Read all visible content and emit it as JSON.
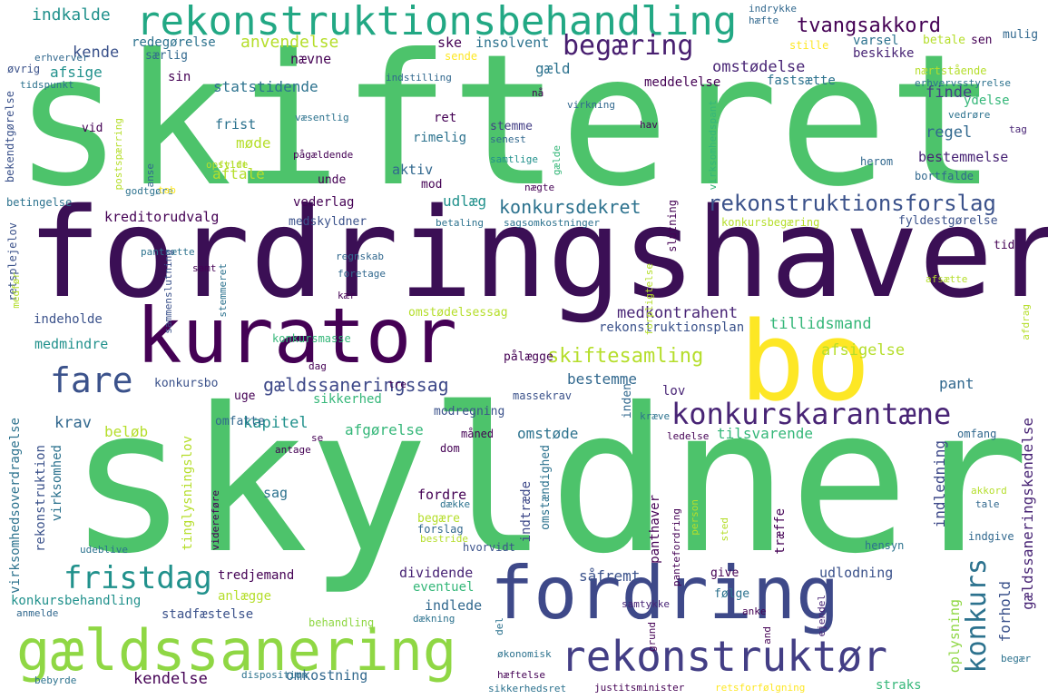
{
  "words": [
    {
      "t": "skifteret",
      "c": "#4dc36b"
    },
    {
      "t": "fordringshaver",
      "c": "#3b0f55"
    },
    {
      "t": "skyldner",
      "c": "#4dc36b"
    },
    {
      "t": "kurator",
      "c": "#440154"
    },
    {
      "t": "bo",
      "c": "#fde725"
    },
    {
      "t": "fordring",
      "c": "#3e4989"
    },
    {
      "t": "gældssanering",
      "c": "#8fd744"
    },
    {
      "t": "rekonstruktionsbehandling",
      "c": "#22a884"
    },
    {
      "t": "rekonstruktør",
      "c": "#433e85"
    },
    {
      "t": "fare",
      "c": "#3b528b"
    },
    {
      "t": "begæring",
      "c": "#481f70"
    },
    {
      "t": "konkurskarantæne",
      "c": "#482475"
    },
    {
      "t": "fristdag",
      "c": "#21918c"
    },
    {
      "t": "konkurs",
      "c": "#2c728e"
    },
    {
      "t": "rekonstruktionsforslag",
      "c": "#3b528b"
    },
    {
      "t": "tvangsakkord",
      "c": "#440154"
    },
    {
      "t": "skiftesamling",
      "c": "#b5de2b"
    },
    {
      "t": "gældssaneringssag",
      "c": "#3e4989"
    },
    {
      "t": "konkursdekret",
      "c": "#2c728e"
    },
    {
      "t": "medkontrahent",
      "c": "#482475"
    },
    {
      "t": "indkalde",
      "c": "#21918c"
    },
    {
      "t": "anvendelse",
      "c": "#b5de2b"
    },
    {
      "t": "omstødelse",
      "c": "#482475"
    },
    {
      "t": "kende",
      "c": "#3b528b"
    },
    {
      "t": "nævne",
      "c": "#440154"
    },
    {
      "t": "afsige",
      "c": "#21918c"
    },
    {
      "t": "gæld",
      "c": "#2c728e"
    },
    {
      "t": "finde",
      "c": "#433e85"
    },
    {
      "t": "regel",
      "c": "#31688e"
    },
    {
      "t": "ydelse",
      "c": "#35b779"
    },
    {
      "t": "bestemmelse",
      "c": "#482475"
    },
    {
      "t": "statstidende",
      "c": "#2c728e"
    },
    {
      "t": "meddelelse",
      "c": "#440154"
    },
    {
      "t": "fastsætte",
      "c": "#2c728e"
    },
    {
      "t": "redegørelse",
      "c": "#2c728e"
    },
    {
      "t": "særlig",
      "c": "#31688e"
    },
    {
      "t": "sende",
      "c": "#fde725"
    },
    {
      "t": "ske",
      "c": "#440154"
    },
    {
      "t": "insolvent",
      "c": "#2c728e"
    },
    {
      "t": "frist",
      "c": "#2c728e"
    },
    {
      "t": "møde",
      "c": "#b5de2b"
    },
    {
      "t": "ret",
      "c": "#440154"
    },
    {
      "t": "stemme",
      "c": "#433e85"
    },
    {
      "t": "rimelig",
      "c": "#2c728e"
    },
    {
      "t": "aktiv",
      "c": "#31688e"
    },
    {
      "t": "mod",
      "c": "#440154"
    },
    {
      "t": "aftale",
      "c": "#b5de2b"
    },
    {
      "t": "udlæg",
      "c": "#21918c"
    },
    {
      "t": "vederlag",
      "c": "#440154"
    },
    {
      "t": "kreditorudvalg",
      "c": "#440154"
    },
    {
      "t": "medskyldner",
      "c": "#3b528b"
    },
    {
      "t": "indeholde",
      "c": "#3b528b"
    },
    {
      "t": "medmindre",
      "c": "#21918c"
    },
    {
      "t": "tillidsmand",
      "c": "#35b779"
    },
    {
      "t": "rekonstruktionsplan",
      "c": "#3b528b"
    },
    {
      "t": "afsigelse",
      "c": "#b5de2b"
    },
    {
      "t": "bestemme",
      "c": "#31688e"
    },
    {
      "t": "pant",
      "c": "#31688e"
    },
    {
      "t": "lov",
      "c": "#482475"
    },
    {
      "t": "krav",
      "c": "#31688e"
    },
    {
      "t": "beløb",
      "c": "#b5de2b"
    },
    {
      "t": "kapitel",
      "c": "#21918c"
    },
    {
      "t": "afgørelse",
      "c": "#35b779"
    },
    {
      "t": "omstøde",
      "c": "#2c728e"
    },
    {
      "t": "tilsvarende",
      "c": "#35b779"
    },
    {
      "t": "sikkerhed",
      "c": "#35b779"
    },
    {
      "t": "uge",
      "c": "#440154"
    },
    {
      "t": "konkursbo",
      "c": "#3b528b"
    },
    {
      "t": "pålægge",
      "c": "#440154"
    },
    {
      "t": "inden",
      "c": "#31688e"
    },
    {
      "t": "indledning",
      "c": "#3e4989"
    },
    {
      "t": "forhold",
      "c": "#3b528b"
    },
    {
      "t": "gældssaneringskendelse",
      "c": "#482475"
    },
    {
      "t": "oplysning",
      "c": "#8fd744"
    },
    {
      "t": "udlodning",
      "c": "#3b528b"
    },
    {
      "t": "sag",
      "c": "#2c728e"
    },
    {
      "t": "fordre",
      "c": "#440154"
    },
    {
      "t": "dividende",
      "c": "#482475"
    },
    {
      "t": "eventuel",
      "c": "#35b779"
    },
    {
      "t": "indlede",
      "c": "#31688e"
    },
    {
      "t": "tredjemand",
      "c": "#440154"
    },
    {
      "t": "anlægge",
      "c": "#b5de2b"
    },
    {
      "t": "stadfæstelse",
      "c": "#3b528b"
    },
    {
      "t": "kendelse",
      "c": "#440154"
    },
    {
      "t": "omkostning",
      "c": "#31688e"
    },
    {
      "t": "konkursbehandling",
      "c": "#21918c"
    },
    {
      "t": "behandling",
      "c": "#8fd744"
    },
    {
      "t": "straks",
      "c": "#35b779"
    },
    {
      "t": "rekonstruktion",
      "c": "#3b528b"
    },
    {
      "t": "virksomhed",
      "c": "#2c728e"
    },
    {
      "t": "virksomhedsoverdragelse",
      "c": "#2c728e"
    },
    {
      "t": "tinglysningslov",
      "c": "#b5de2b"
    },
    {
      "t": "indtræde",
      "c": "#3e4989"
    },
    {
      "t": "omstændighed",
      "c": "#2c728e"
    },
    {
      "t": "panthaver",
      "c": "#440154"
    },
    {
      "t": "træffe",
      "c": "#440154"
    },
    {
      "t": "såfremt",
      "c": "#3b528b"
    },
    {
      "t": "følge",
      "c": "#2c728e"
    },
    {
      "t": "give",
      "c": "#440154"
    },
    {
      "t": "forslag",
      "c": "#31688e"
    },
    {
      "t": "begære",
      "c": "#b5de2b"
    },
    {
      "t": "hvorvidt",
      "c": "#3b528b"
    },
    {
      "t": "hensyn",
      "c": "#2c728e"
    },
    {
      "t": "indgive",
      "c": "#31688e"
    },
    {
      "t": "omfang",
      "c": "#31688e"
    },
    {
      "t": "omfatte",
      "c": "#31688e"
    },
    {
      "t": "dom",
      "c": "#440154"
    },
    {
      "t": "måned",
      "c": "#440154"
    },
    {
      "t": "modregning",
      "c": "#3b528b"
    },
    {
      "t": "massekrav",
      "c": "#3b528b"
    },
    {
      "t": "konkursmasse",
      "c": "#35b779"
    },
    {
      "t": "omstødelsessag",
      "c": "#b5de2b"
    },
    {
      "t": "konkursbegæring",
      "c": "#b5de2b"
    },
    {
      "t": "fyldestgørelse",
      "c": "#3b528b"
    },
    {
      "t": "tid",
      "c": "#440154"
    },
    {
      "t": "betaling",
      "c": "#2c728e"
    },
    {
      "t": "sagsomkostninger",
      "c": "#2c728e"
    },
    {
      "t": "unde",
      "c": "#440154"
    },
    {
      "t": "pågældende",
      "c": "#440154"
    },
    {
      "t": "herom",
      "c": "#31688e"
    },
    {
      "t": "bortfalde",
      "c": "#31688e"
    },
    {
      "t": "samtlige",
      "c": "#21918c"
    },
    {
      "t": "nægte",
      "c": "#440154"
    },
    {
      "t": "slutning",
      "c": "#440154"
    },
    {
      "t": "gælde",
      "c": "#35b779"
    },
    {
      "t": "senest",
      "c": "#31688e"
    },
    {
      "t": "væsentlig",
      "c": "#2c728e"
    },
    {
      "t": "vid",
      "c": "#440154"
    },
    {
      "t": "postspærring",
      "c": "#b5de2b"
    },
    {
      "t": "bekendtgørelse",
      "c": "#3b528b"
    },
    {
      "t": "tidspunkt",
      "c": "#2c728e"
    },
    {
      "t": "erhverver",
      "c": "#31688e"
    },
    {
      "t": "øvrig",
      "c": "#3b528b"
    },
    {
      "t": "sin",
      "c": "#440154"
    },
    {
      "t": "indstilling",
      "c": "#31688e"
    },
    {
      "t": "nå",
      "c": "#440154"
    },
    {
      "t": "virkning",
      "c": "#31688e"
    },
    {
      "t": "erhvervsstyrelse",
      "c": "#2c728e"
    },
    {
      "t": "vedrøre",
      "c": "#2c728e"
    },
    {
      "t": "tag",
      "c": "#482475"
    },
    {
      "t": "hav",
      "c": "#440154"
    },
    {
      "t": "stift",
      "c": "#b5de2b"
    },
    {
      "t": "opfylde",
      "c": "#b5de2b"
    },
    {
      "t": "godtgøre",
      "c": "#2c728e"
    },
    {
      "t": "tab",
      "c": "#fde725"
    },
    {
      "t": "betingelse",
      "c": "#2c728e"
    },
    {
      "t": "anse",
      "c": "#31688e"
    },
    {
      "t": "virksomhedspant",
      "c": "#35b779"
    },
    {
      "t": "indrykke",
      "c": "#31688e"
    },
    {
      "t": "hæfte",
      "c": "#31688e"
    },
    {
      "t": "varsel",
      "c": "#2c728e"
    },
    {
      "t": "betale",
      "c": "#b5de2b"
    },
    {
      "t": "sen",
      "c": "#440154"
    },
    {
      "t": "mulig",
      "c": "#31688e"
    },
    {
      "t": "nærtstående",
      "c": "#b5de2b"
    },
    {
      "t": "stille",
      "c": "#fde725"
    },
    {
      "t": "beskikke",
      "c": "#482475"
    },
    {
      "t": "retsplejelov",
      "c": "#3b528b"
    },
    {
      "t": "medfør",
      "c": "#b5de2b"
    },
    {
      "t": "pantsætte",
      "c": "#2c728e"
    },
    {
      "t": "samt",
      "c": "#440154"
    },
    {
      "t": "sammenslutning",
      "c": "#3b528b"
    },
    {
      "t": "stemmeret",
      "c": "#2c728e"
    },
    {
      "t": "regnskab",
      "c": "#31688e"
    },
    {
      "t": "foretage",
      "c": "#31688e"
    },
    {
      "t": "kær",
      "c": "#440154"
    },
    {
      "t": "forpligtelse",
      "c": "#b5de2b"
    },
    {
      "t": "afsætte",
      "c": "#b5de2b"
    },
    {
      "t": "afdrag",
      "c": "#b5de2b"
    },
    {
      "t": "dag",
      "c": "#440154"
    },
    {
      "t": "tre",
      "c": "#440154"
    },
    {
      "t": "kræve",
      "c": "#2c728e"
    },
    {
      "t": "ledelse",
      "c": "#440154"
    },
    {
      "t": "akkord",
      "c": "#b5de2b"
    },
    {
      "t": "tale",
      "c": "#31688e"
    },
    {
      "t": "antage",
      "c": "#440154"
    },
    {
      "t": "se",
      "c": "#440154"
    },
    {
      "t": "udeblive",
      "c": "#2c728e"
    },
    {
      "t": "videreføre",
      "c": "#440154"
    },
    {
      "t": "dække",
      "c": "#2c728e"
    },
    {
      "t": "bestride",
      "c": "#b5de2b"
    },
    {
      "t": "person",
      "c": "#b5de2b"
    },
    {
      "t": "sted",
      "c": "#b5de2b"
    },
    {
      "t": "pantefordring",
      "c": "#440154"
    },
    {
      "t": "samtykke",
      "c": "#482475"
    },
    {
      "t": "ejendel",
      "c": "#482475"
    },
    {
      "t": "anke",
      "c": "#440154"
    },
    {
      "t": "anmelde",
      "c": "#31688e"
    },
    {
      "t": "dækning",
      "c": "#2c728e"
    },
    {
      "t": "grund",
      "c": "#440154"
    },
    {
      "t": "and",
      "c": "#440154"
    },
    {
      "t": "del",
      "c": "#2c728e"
    },
    {
      "t": "økonomisk",
      "c": "#2c728e"
    },
    {
      "t": "disposition",
      "c": "#2c728e"
    },
    {
      "t": "hæftelse",
      "c": "#440154"
    },
    {
      "t": "begær",
      "c": "#2c728e"
    },
    {
      "t": "bebyrde",
      "c": "#2c728e"
    },
    {
      "t": "sikkerhedsret",
      "c": "#2c728e"
    },
    {
      "t": "justitsminister",
      "c": "#440154"
    },
    {
      "t": "retsforfølgning",
      "c": "#fde725"
    }
  ]
}
